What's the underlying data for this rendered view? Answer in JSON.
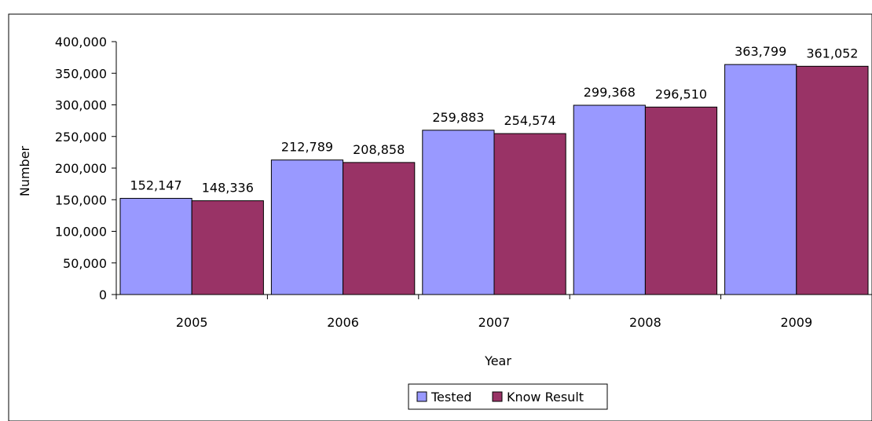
{
  "chart_data": {
    "type": "bar",
    "title": "",
    "xlabel": "Year",
    "ylabel": "Number",
    "ylim": [
      0,
      400000
    ],
    "y_ticks": [
      0,
      50000,
      100000,
      150000,
      200000,
      250000,
      300000,
      350000,
      400000
    ],
    "y_tick_labels": [
      "0",
      "50,000",
      "100,000",
      "150,000",
      "200,000",
      "250,000",
      "300,000",
      "350,000",
      "400,000"
    ],
    "categories": [
      "2005",
      "2006",
      "2007",
      "2008",
      "2009"
    ],
    "series": [
      {
        "name": "Tested",
        "color": "#9999ff",
        "values": [
          152147,
          212789,
          259883,
          299368,
          363799
        ],
        "labels": [
          "152,147",
          "212,789",
          "259,883",
          "299,368",
          "363,799"
        ]
      },
      {
        "name": "Know Result",
        "color": "#993366",
        "values": [
          148336,
          208858,
          254574,
          296510,
          361052
        ],
        "labels": [
          "148,336",
          "208,858",
          "254,574",
          "296,510",
          "361,052"
        ]
      }
    ],
    "grid": false,
    "legend_position": "bottom"
  }
}
